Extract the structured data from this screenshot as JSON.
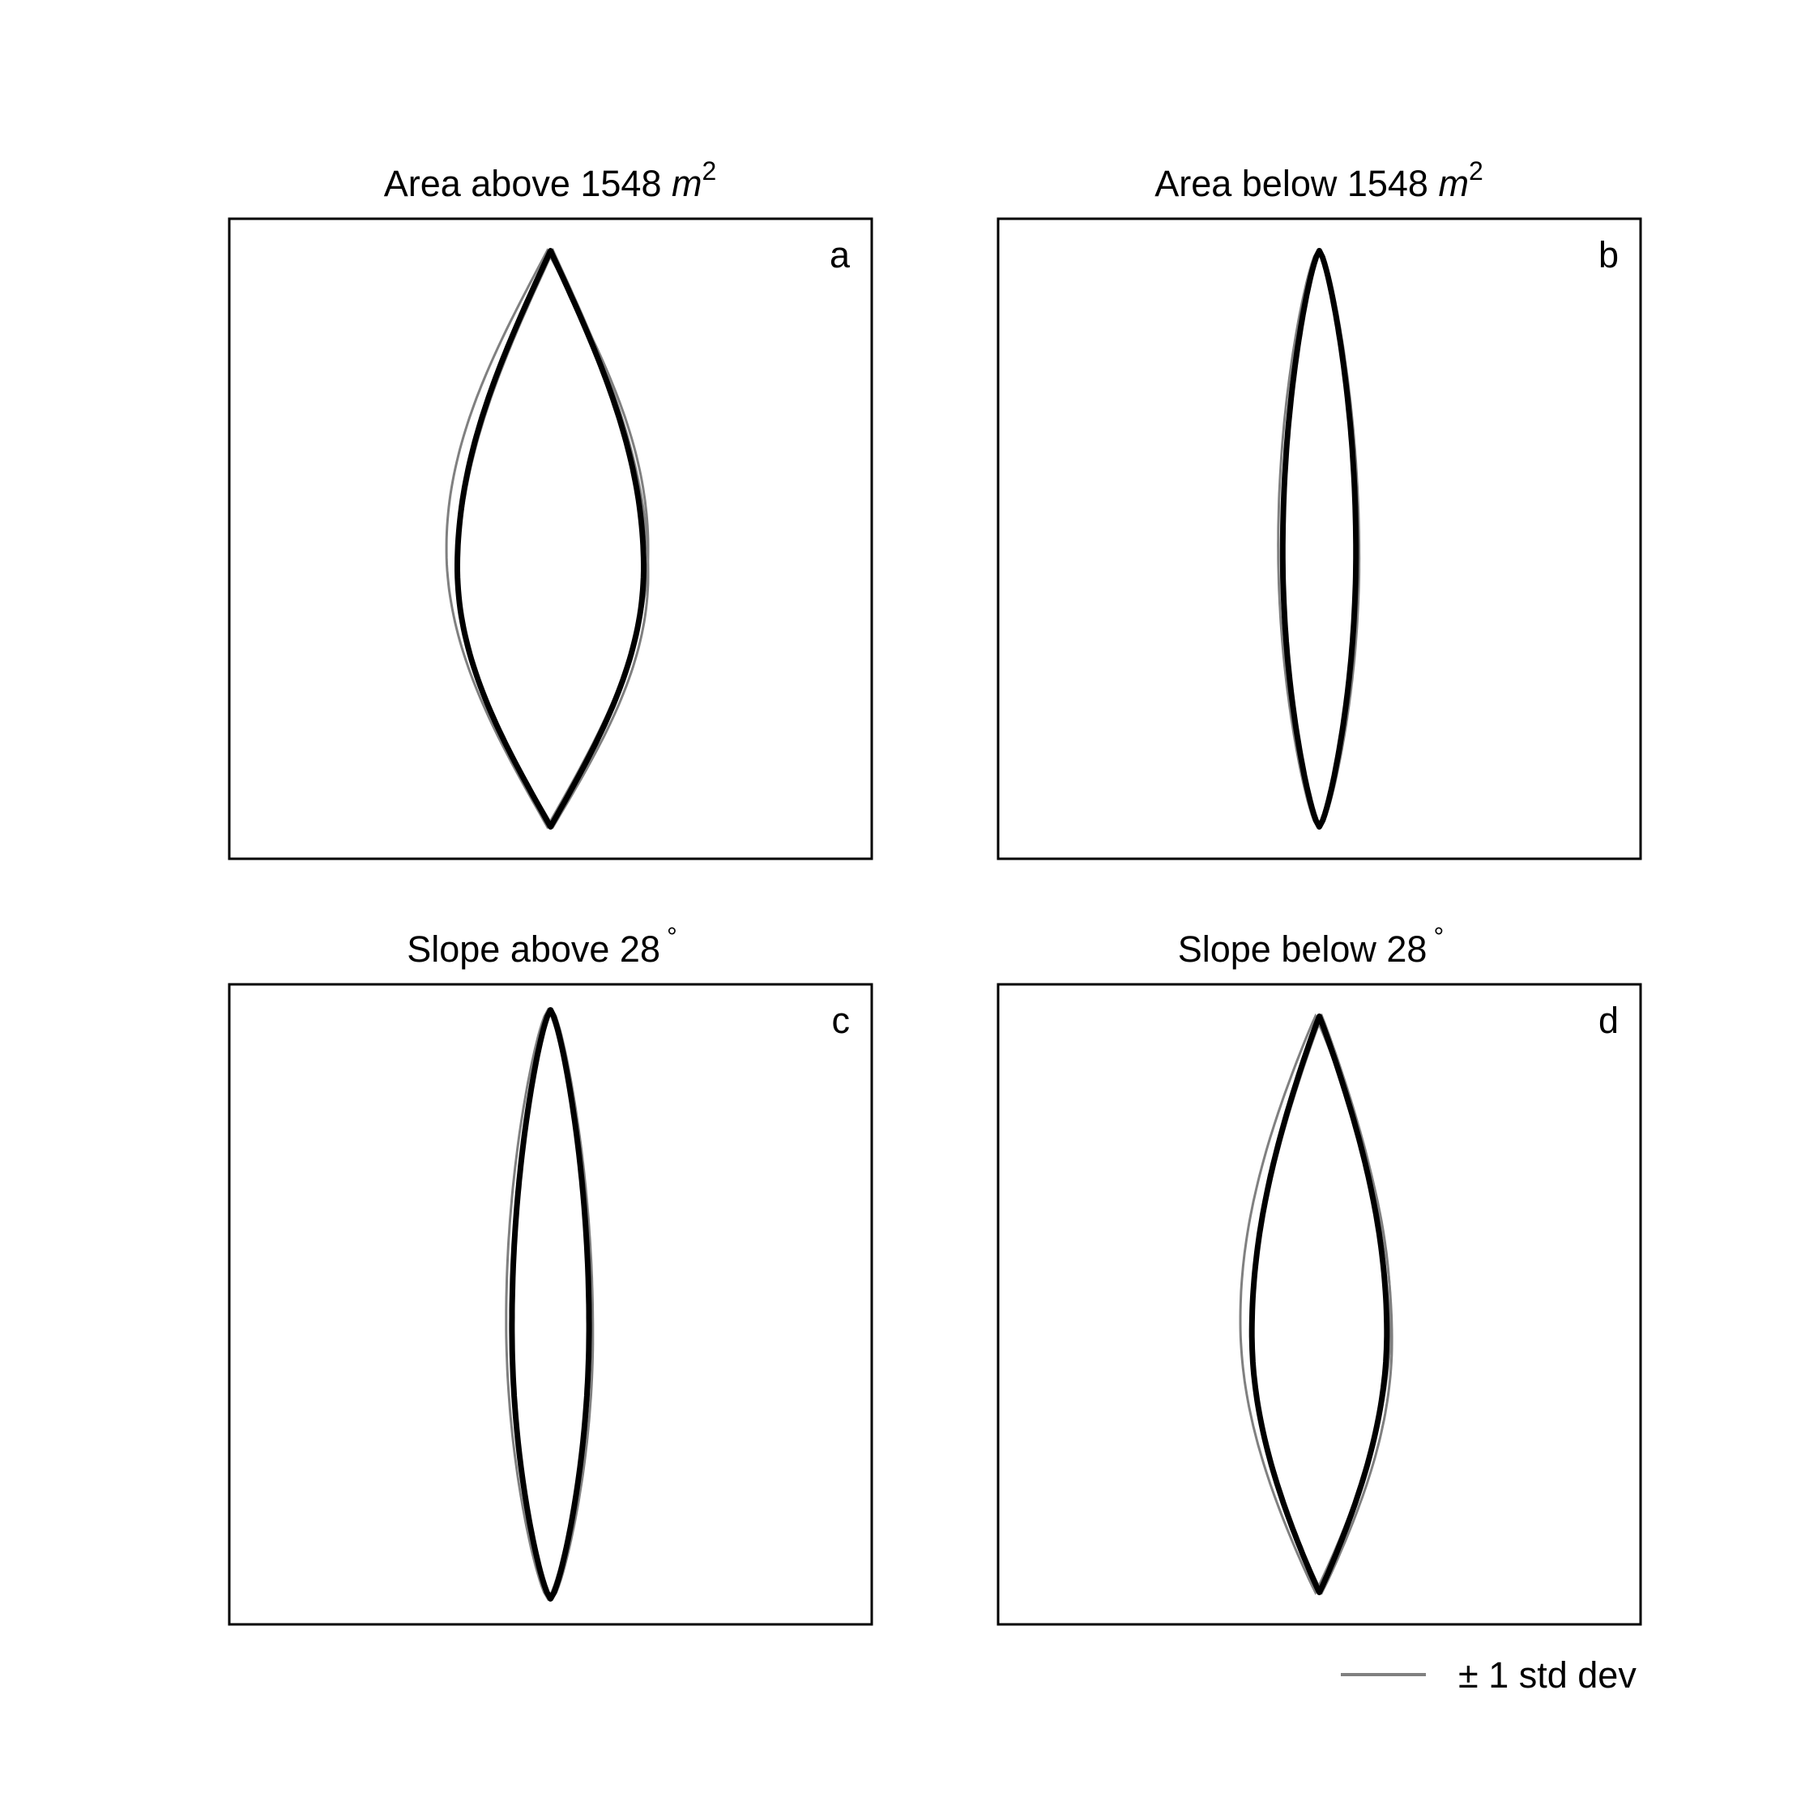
{
  "figure": {
    "legend": {
      "label": "± 1 std dev",
      "color": "#808080"
    },
    "mean_color": "#000000",
    "std_color": "#808080"
  },
  "chart_data": [
    {
      "type": "line",
      "panel_label": "a",
      "title": {
        "main": "Area above 1548 ",
        "unit": "m",
        "sup": "2"
      },
      "shape": {
        "center_x": 0.0,
        "half_width": 0.145,
        "half_height": 0.45,
        "y_bulge": 0.045,
        "exponent": 1.0,
        "top_offset": 0.0,
        "bottom_offset": 0.0
      },
      "std": [
        {
          "d_half_width": 0.012,
          "d_bulge": -0.03,
          "d_center": -0.005
        },
        {
          "d_half_width": 0.003,
          "d_bulge": 0.012,
          "d_center": 0.004
        }
      ]
    },
    {
      "type": "line",
      "panel_label": "b",
      "title": {
        "main": "Area below 1548 ",
        "unit": "m",
        "sup": "2"
      },
      "shape": {
        "center_x": 0.0,
        "half_width": 0.057,
        "half_height": 0.45,
        "y_bulge": 0.02,
        "exponent": 0.72,
        "top_offset": 0.0,
        "bottom_offset": 0.0
      },
      "std": [
        {
          "d_half_width": 0.004,
          "d_bulge": -0.01,
          "d_center": -0.003
        },
        {
          "d_half_width": 0.003,
          "d_bulge": 0.01,
          "d_center": 0.002
        }
      ]
    },
    {
      "type": "line",
      "panel_label": "c",
      "title": {
        "main": "Slope above 28",
        "unit": "",
        "sup": "°"
      },
      "shape": {
        "center_x": 0.0,
        "half_width": 0.06,
        "half_height": 0.45,
        "y_bulge": 0.035,
        "exponent": 0.72,
        "top_offset": -0.01,
        "bottom_offset": 0.01
      },
      "std": [
        {
          "d_half_width": 0.005,
          "d_bulge": -0.01,
          "d_center": -0.004
        },
        {
          "d_half_width": 0.003,
          "d_bulge": 0.01,
          "d_center": 0.003
        }
      ]
    },
    {
      "type": "line",
      "panel_label": "d",
      "title": {
        "main": "Slope below 28",
        "unit": "",
        "sup": "°"
      },
      "shape": {
        "center_x": 0.0,
        "half_width": 0.105,
        "half_height": 0.45,
        "y_bulge": 0.045,
        "exponent": 0.95,
        "top_offset": 0.0,
        "bottom_offset": 0.0
      },
      "std": [
        {
          "d_half_width": 0.012,
          "d_bulge": -0.02,
          "d_center": -0.006
        },
        {
          "d_half_width": 0.004,
          "d_bulge": 0.012,
          "d_center": 0.004
        }
      ]
    }
  ]
}
